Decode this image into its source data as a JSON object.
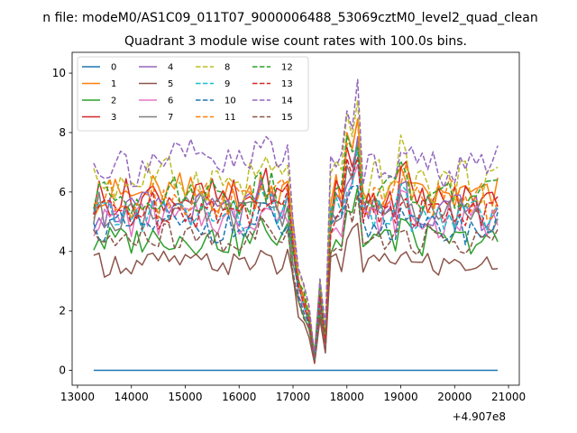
{
  "chart_data": {
    "type": "line",
    "suptitle": "n file: modeM0/AS1C09_011T07_9000006488_53069cztM0_level2_quad_clean",
    "title": "Quadrant 3 module wise count rates with 100.0s bins.",
    "xlabel": "",
    "ylabel": "",
    "x_offset_label": "+4.907e8",
    "xlim": [
      12900,
      21200
    ],
    "ylim": [
      -0.5,
      10.7
    ],
    "xticks": [
      13000,
      14000,
      15000,
      16000,
      17000,
      18000,
      19000,
      20000,
      21000
    ],
    "yticks": [
      0,
      2,
      4,
      6,
      8,
      10
    ],
    "x_range": [
      13300,
      20800
    ],
    "x_step": 100,
    "legend_position": "upper left",
    "series": [
      {
        "name": "0",
        "color": "#1f77b4",
        "dash": false,
        "values": [
          0
        ]
      },
      {
        "name": "1",
        "color": "#ff7f0e",
        "dash": false,
        "level": 5.9
      },
      {
        "name": "2",
        "color": "#2ca02c",
        "dash": false,
        "level": 4.4
      },
      {
        "name": "3",
        "color": "#d62728",
        "dash": false,
        "level": 5.8
      },
      {
        "name": "4",
        "color": "#9467bd",
        "dash": false,
        "level": 5.4
      },
      {
        "name": "5",
        "color": "#8c564b",
        "dash": false,
        "level": 3.6
      },
      {
        "name": "6",
        "color": "#e377c2",
        "dash": false,
        "level": 5.1
      },
      {
        "name": "7",
        "color": "#7f7f7f",
        "dash": false,
        "level": 5.3
      },
      {
        "name": "8",
        "color": "#bcbd22",
        "dash": true,
        "level": 6.4
      },
      {
        "name": "9",
        "color": "#17becf",
        "dash": true,
        "level": 5.2
      },
      {
        "name": "10",
        "color": "#1f77b4",
        "dash": true,
        "level": 4.8
      },
      {
        "name": "11",
        "color": "#ff7f0e",
        "dash": true,
        "level": 5.8
      },
      {
        "name": "12",
        "color": "#2ca02c",
        "dash": true,
        "level": 5.9
      },
      {
        "name": "13",
        "color": "#d62728",
        "dash": true,
        "level": 5.4
      },
      {
        "name": "14",
        "color": "#9467bd",
        "dash": true,
        "level": 7.0
      },
      {
        "name": "15",
        "color": "#8c564b",
        "dash": true,
        "level": 4.4
      }
    ]
  }
}
